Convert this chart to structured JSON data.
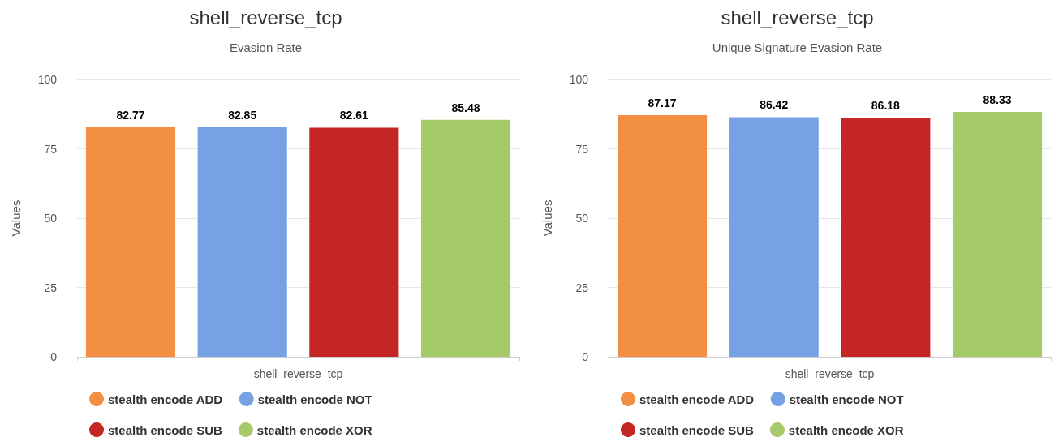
{
  "chart_data": [
    {
      "type": "bar",
      "title": "shell_reverse_tcp",
      "subtitle": "Evasion Rate",
      "ylabel": "Values",
      "categories": [
        "shell_reverse_tcp"
      ],
      "series": [
        {
          "name": "stealth encode ADD",
          "color": "#f28f43",
          "values": [
            82.77
          ]
        },
        {
          "name": "stealth encode NOT",
          "color": "#77a1e5",
          "values": [
            82.85
          ]
        },
        {
          "name": "stealth encode SUB",
          "color": "#c42525",
          "values": [
            82.61
          ]
        },
        {
          "name": "stealth encode XOR",
          "color": "#a6c96a",
          "values": [
            85.48
          ]
        }
      ],
      "ylim": [
        0,
        100
      ],
      "yticks": [
        0,
        25,
        50,
        75,
        100
      ],
      "grid": "y",
      "legend": "bottom",
      "data_labels": true
    },
    {
      "type": "bar",
      "title": "shell_reverse_tcp",
      "subtitle": "Unique Signature Evasion Rate",
      "ylabel": "Values",
      "categories": [
        "shell_reverse_tcp"
      ],
      "series": [
        {
          "name": "stealth encode ADD",
          "color": "#f28f43",
          "values": [
            87.17
          ]
        },
        {
          "name": "stealth encode NOT",
          "color": "#77a1e5",
          "values": [
            86.42
          ]
        },
        {
          "name": "stealth encode SUB",
          "color": "#c42525",
          "values": [
            86.18
          ]
        },
        {
          "name": "stealth encode XOR",
          "color": "#a6c96a",
          "values": [
            88.33
          ]
        }
      ],
      "ylim": [
        0,
        100
      ],
      "yticks": [
        0,
        25,
        50,
        75,
        100
      ],
      "grid": "y",
      "legend": "bottom",
      "data_labels": true
    }
  ]
}
